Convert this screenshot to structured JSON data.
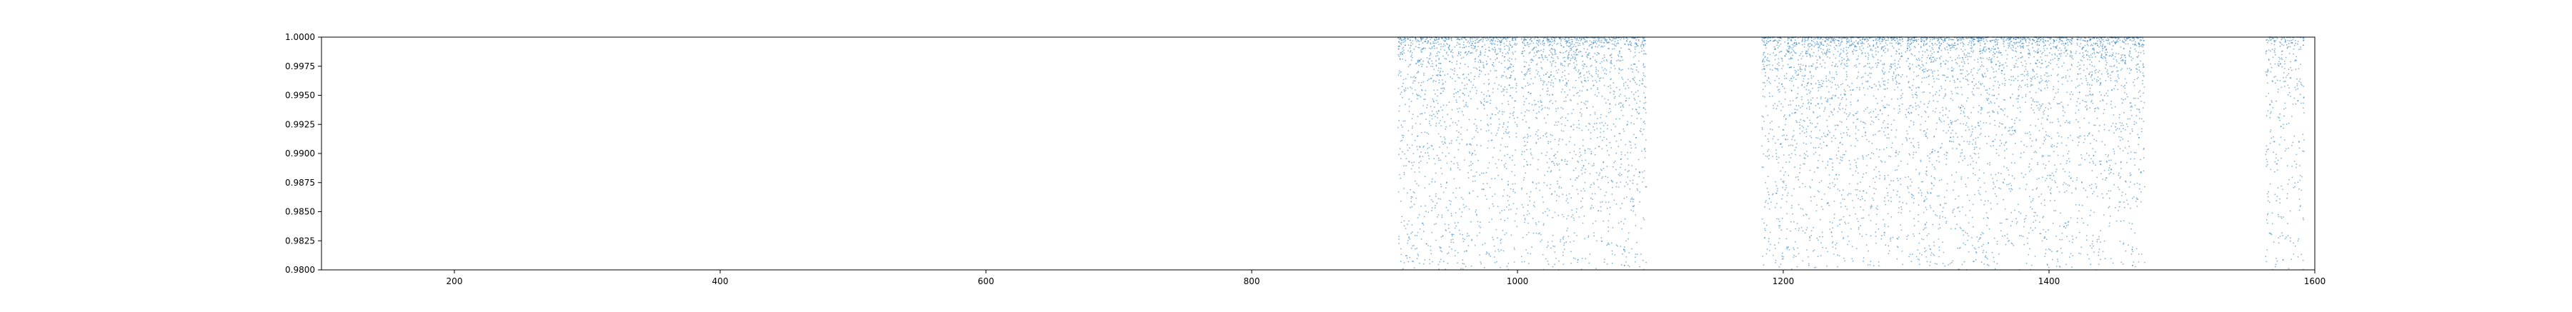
{
  "chart_data": {
    "type": "scatter",
    "title": "",
    "xlabel": "",
    "ylabel": "",
    "xlim": [
      100,
      1600
    ],
    "ylim": [
      0.98,
      1.0
    ],
    "grid": false,
    "x_ticks": [
      200,
      400,
      600,
      800,
      1000,
      1200,
      1400,
      1600
    ],
    "x_tick_labels": [
      "200",
      "400",
      "600",
      "800",
      "1000",
      "1200",
      "1400",
      "1600"
    ],
    "y_ticks": [
      0.98,
      0.9825,
      0.985,
      0.9875,
      0.99,
      0.9925,
      0.995,
      0.9975,
      1.0
    ],
    "y_tick_labels": [
      "0.9800",
      "0.9825",
      "0.9850",
      "0.9875",
      "0.9900",
      "0.9925",
      "0.9950",
      "0.9975",
      "1.0000"
    ],
    "series": [
      {
        "color": "#1f77b4",
        "point_density_note": "dense points concentrated near y=1.0, thinning toward y=0.98",
        "clusters": [
          {
            "x_range": [
              910,
              1000
            ],
            "point_count": 1400
          },
          {
            "x_range": [
              1003,
              1097
            ],
            "point_count": 1500
          },
          {
            "x_range": [
              1184,
              1290
            ],
            "point_count": 1700
          },
          {
            "x_range": [
              1292,
              1418
            ],
            "point_count": 2000
          },
          {
            "x_range": [
              1420,
              1472
            ],
            "point_count": 800
          },
          {
            "x_range": [
              1563,
              1592
            ],
            "point_count": 350
          }
        ]
      }
    ]
  }
}
